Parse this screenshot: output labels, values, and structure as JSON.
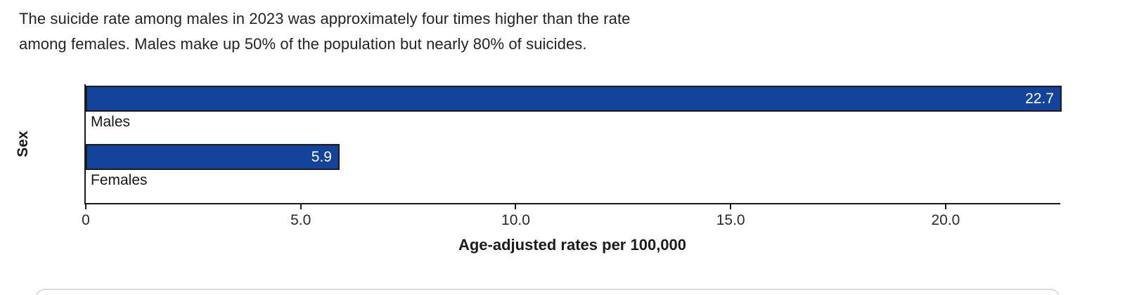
{
  "header": {
    "lines": [
      "The suicide rate among males in 2023 was approximately four times higher than the rate",
      "among females. Males make up 50% of the population but nearly 80% of suicides."
    ]
  },
  "chart_data": {
    "type": "bar",
    "orientation": "horizontal",
    "categories": [
      "Males",
      "Females"
    ],
    "values": [
      22.7,
      5.9
    ],
    "value_labels": [
      "22.7",
      "5.9"
    ],
    "xlabel": "Age-adjusted rates per 100,000",
    "ylabel": "Sex",
    "xlim": [
      0,
      22.7
    ],
    "xticks": [
      0,
      5,
      10,
      15,
      20
    ],
    "xtick_labels": [
      "0",
      "5.0",
      "10.0",
      "15.0",
      "20.0"
    ],
    "grid": false,
    "legend": false,
    "bar_color": "#14439B",
    "bar_border_color": "#1c1c1c",
    "value_label_color": "#ffffff"
  }
}
